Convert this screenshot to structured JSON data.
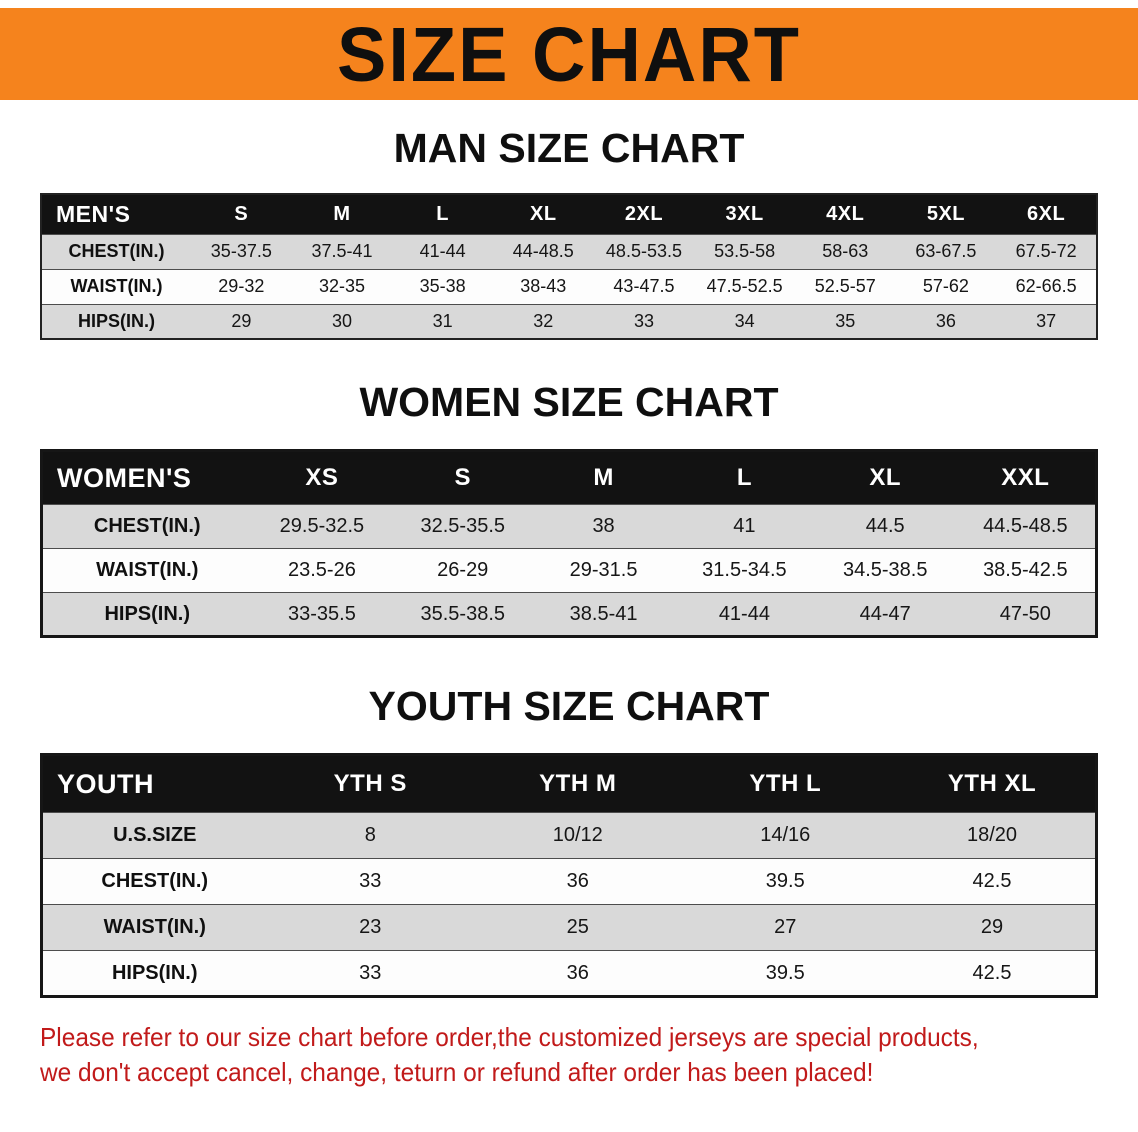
{
  "banner": {
    "title": "SIZE CHART",
    "background_color": "#f5831d",
    "text_color": "#0f0f0f"
  },
  "man": {
    "heading": "MAN SIZE CHART",
    "table": {
      "columns": [
        "MEN'S",
        "S",
        "M",
        "L",
        "XL",
        "2XL",
        "3XL",
        "4XL",
        "5XL",
        "6XL"
      ],
      "rows": [
        {
          "label": "CHEST(IN.)",
          "values": [
            "35-37.5",
            "37.5-41",
            "41-44",
            "44-48.5",
            "48.5-53.5",
            "53.5-58",
            "58-63",
            "63-67.5",
            "67.5-72"
          ]
        },
        {
          "label": "WAIST(IN.)",
          "values": [
            "29-32",
            "32-35",
            "35-38",
            "38-43",
            "43-47.5",
            "47.5-52.5",
            "52.5-57",
            "57-62",
            "62-66.5"
          ]
        },
        {
          "label": "HIPS(IN.)",
          "values": [
            "29",
            "30",
            "31",
            "32",
            "33",
            "34",
            "35",
            "36",
            "37"
          ]
        }
      ]
    }
  },
  "women": {
    "heading": "WOMEN SIZE CHART",
    "table": {
      "columns": [
        "WOMEN'S",
        "XS",
        "S",
        "M",
        "L",
        "XL",
        "XXL"
      ],
      "rows": [
        {
          "label": "CHEST(IN.)",
          "values": [
            "29.5-32.5",
            "32.5-35.5",
            "38",
            "41",
            "44.5",
            "44.5-48.5"
          ]
        },
        {
          "label": "WAIST(IN.)",
          "values": [
            "23.5-26",
            "26-29",
            "29-31.5",
            "31.5-34.5",
            "34.5-38.5",
            "38.5-42.5"
          ]
        },
        {
          "label": "HIPS(IN.)",
          "values": [
            "33-35.5",
            "35.5-38.5",
            "38.5-41",
            "41-44",
            "44-47",
            "47-50"
          ]
        }
      ]
    }
  },
  "youth": {
    "heading": "YOUTH SIZE CHART",
    "table": {
      "columns": [
        "YOUTH",
        "YTH S",
        "YTH M",
        "YTH L",
        "YTH XL"
      ],
      "rows": [
        {
          "label": "U.S.SIZE",
          "values": [
            "8",
            "10/12",
            "14/16",
            "18/20"
          ]
        },
        {
          "label": "CHEST(IN.)",
          "values": [
            "33",
            "36",
            "39.5",
            "42.5"
          ]
        },
        {
          "label": "WAIST(IN.)",
          "values": [
            "23",
            "25",
            "27",
            "29"
          ]
        },
        {
          "label": "HIPS(IN.)",
          "values": [
            "33",
            "36",
            "39.5",
            "42.5"
          ]
        }
      ]
    }
  },
  "footer": {
    "line1": "Please refer to our size chart before order,the customized jerseys are special products,",
    "line2": "we don't accept cancel, change, teturn or refund after order has been placed!",
    "text_color": "#c11a1a"
  }
}
